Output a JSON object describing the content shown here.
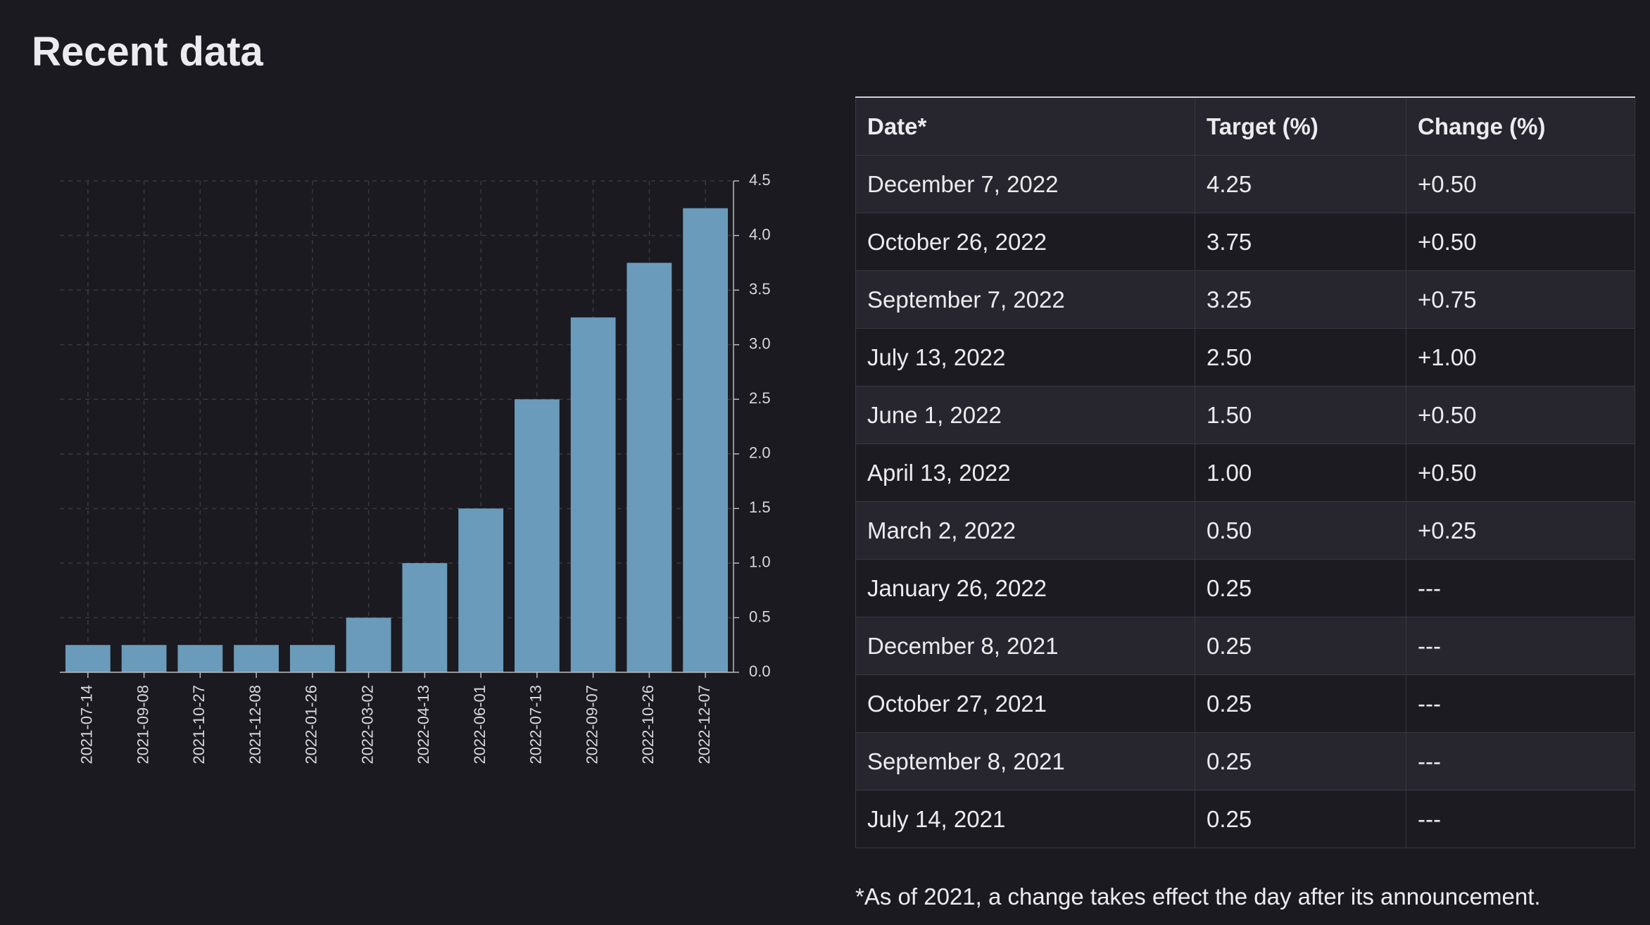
{
  "title": "Recent data",
  "chart_data": {
    "type": "bar",
    "categories": [
      "2021-07-14",
      "2021-09-08",
      "2021-10-27",
      "2021-12-08",
      "2022-01-26",
      "2022-03-02",
      "2022-04-13",
      "2022-06-01",
      "2022-07-13",
      "2022-09-07",
      "2022-10-26",
      "2022-12-07"
    ],
    "values": [
      0.25,
      0.25,
      0.25,
      0.25,
      0.25,
      0.5,
      1,
      1.5,
      2.5,
      3.25,
      3.75,
      4.25
    ],
    "color": "#6a9bba",
    "ylim": [
      0,
      4.5
    ],
    "yticks": [
      {
        "value": 0,
        "label": "0.0"
      },
      0.5,
      {
        "value": 1,
        "label": "1.0"
      },
      1.5,
      {
        "value": 2,
        "label": "2.0"
      },
      2.5,
      {
        "value": 3,
        "label": "3.0"
      },
      3.5,
      {
        "value": 4,
        "label": "4.0"
      },
      4.5
    ],
    "grid": true
  },
  "table": {
    "columns": [
      "Date*",
      "Target (%)",
      "Change (%)"
    ],
    "rows": [
      [
        "December 7, 2022",
        "4.25",
        "+0.50"
      ],
      [
        "October 26, 2022",
        "3.75",
        "+0.50"
      ],
      [
        "September 7, 2022",
        "3.25",
        "+0.75"
      ],
      [
        "July 13, 2022",
        "2.50",
        "+1.00"
      ],
      [
        "June 1, 2022",
        "1.50",
        "+0.50"
      ],
      [
        "April 13, 2022",
        "1.00",
        "+0.50"
      ],
      [
        "March 2, 2022",
        "0.50",
        "+0.25"
      ],
      [
        "January 26, 2022",
        "0.25",
        "---"
      ],
      [
        "December 8, 2021",
        "0.25",
        "---"
      ],
      [
        "October 27, 2021",
        "0.25",
        "---"
      ],
      [
        "September 8, 2021",
        "0.25",
        "---"
      ],
      [
        "July 14, 2021",
        "0.25",
        "---"
      ]
    ]
  },
  "footnote": "*As of 2021, a change takes effect the day after its announcement."
}
